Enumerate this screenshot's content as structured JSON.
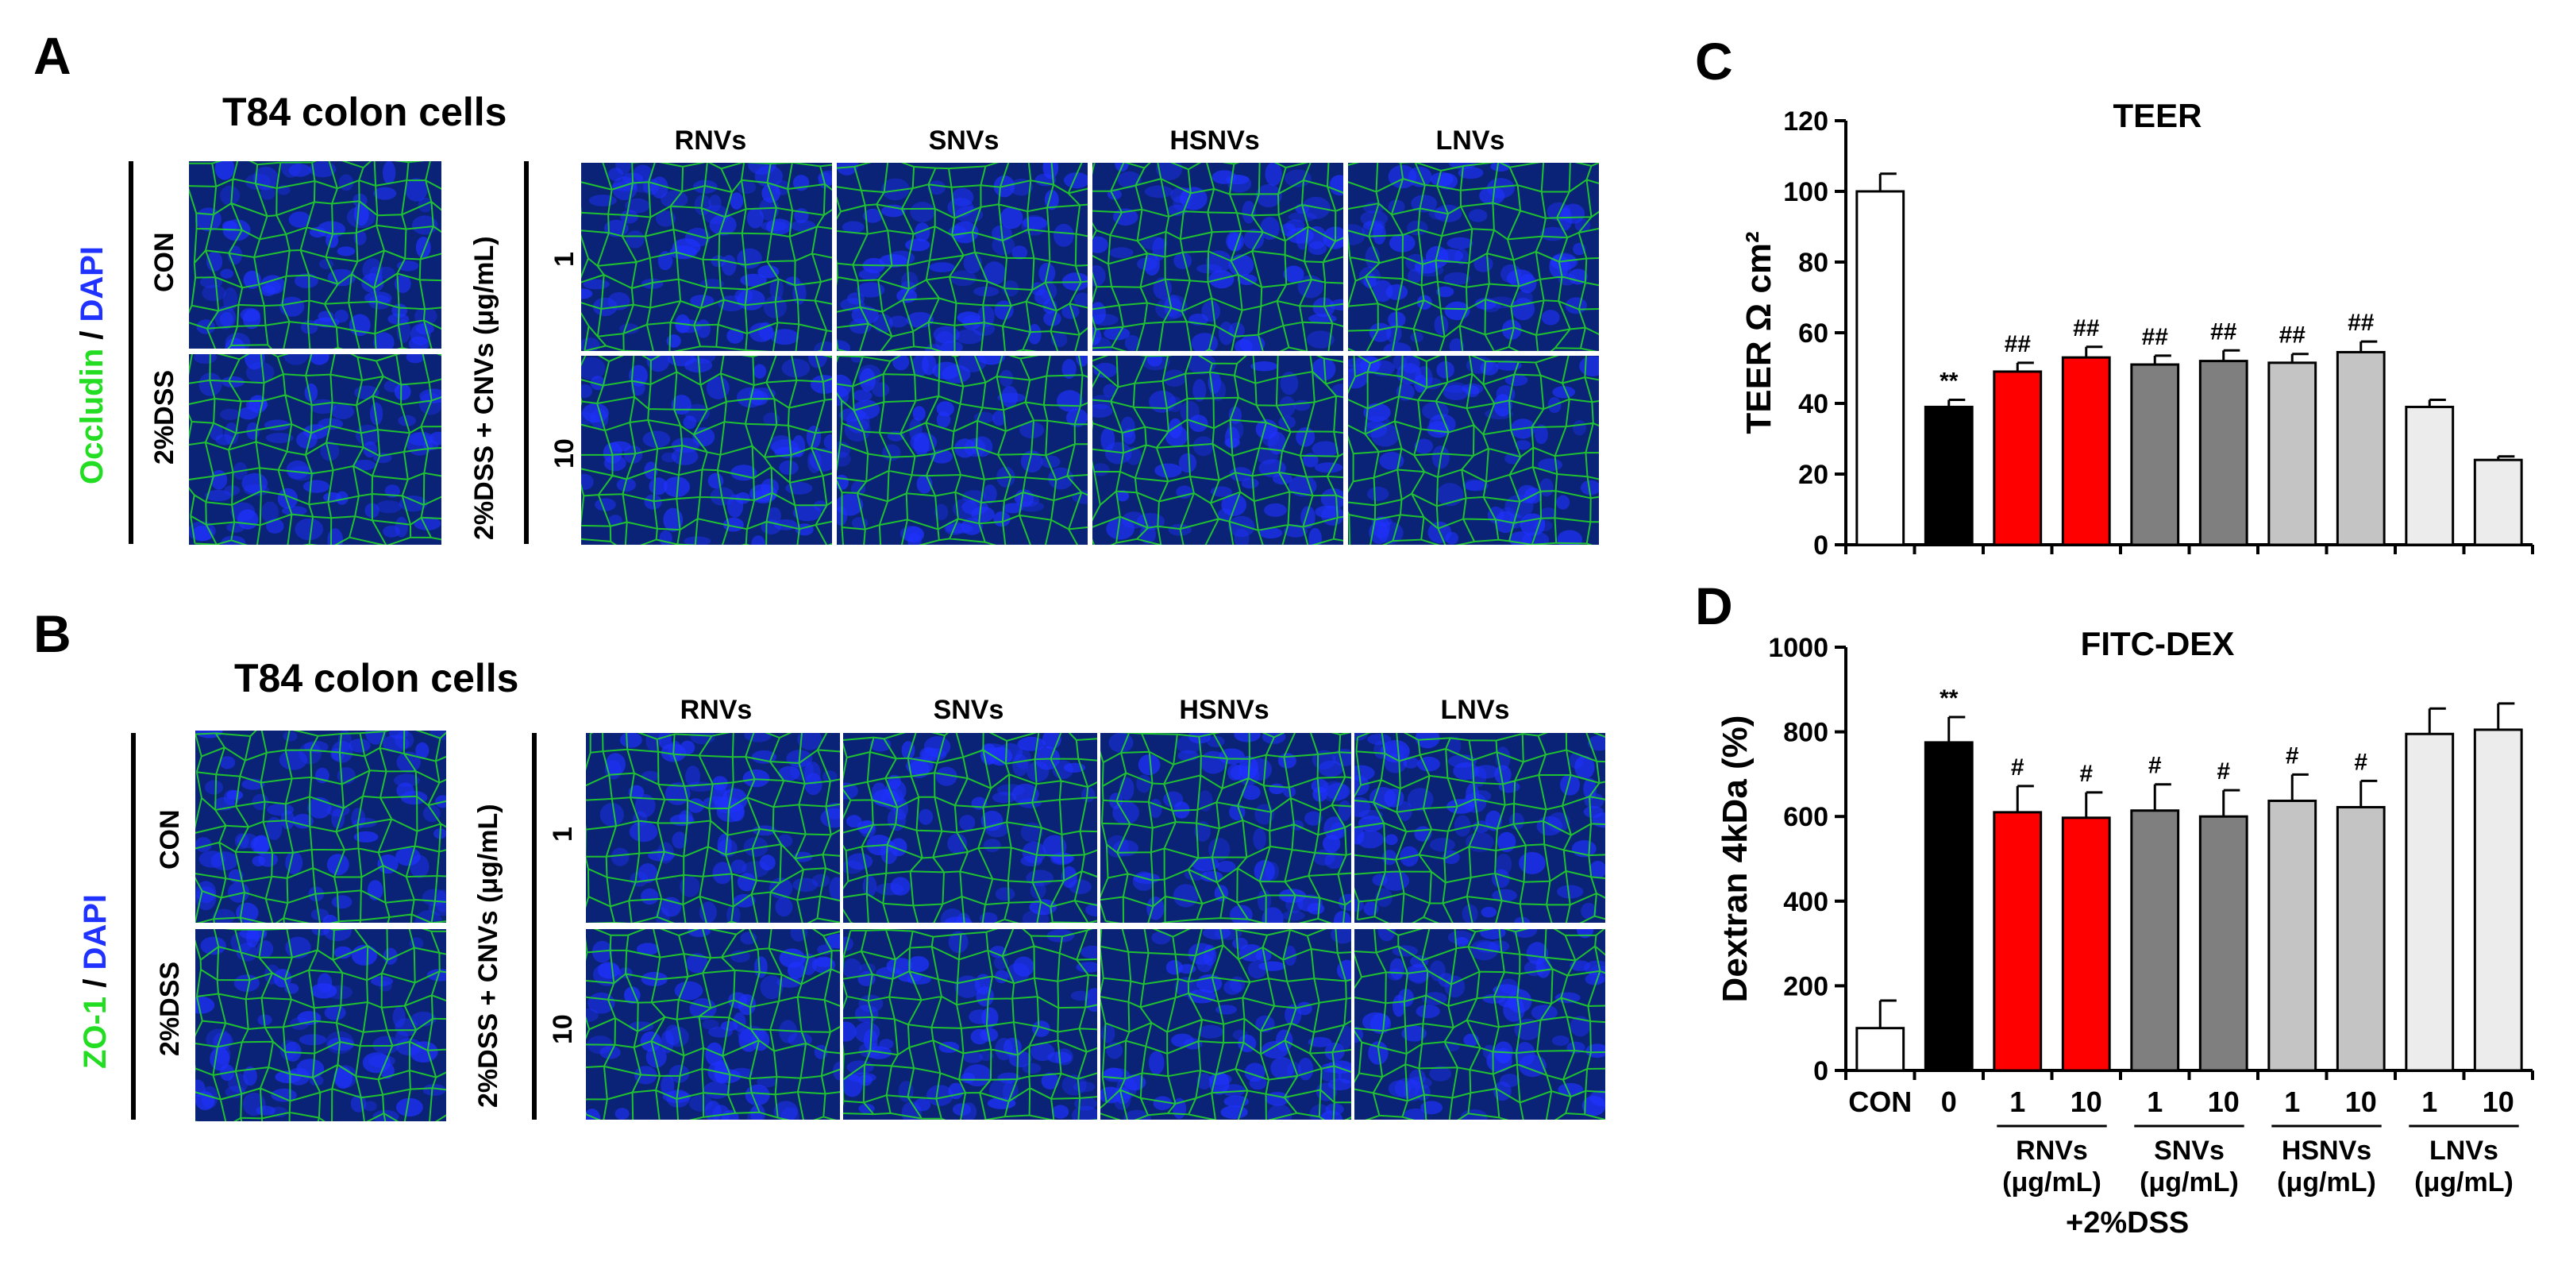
{
  "colors": {
    "stain_green": "#22dd22",
    "stain_blue": "#1f32ff",
    "cell_bg": "#0b2377",
    "con_bar": "#ffffff",
    "dss_bar": "#000000",
    "rnvs_bar": "#ff0000",
    "snvs_bar": "#7f7f7f",
    "hsnvs_bar": "#c4c4c4",
    "lnvs_bar": "#ececec"
  },
  "panelA": {
    "letter": "A",
    "title": "T84 colon cells",
    "stain_green": "Occludin",
    "stain_sep": " / ",
    "stain_blue": "DAPI",
    "row_con": "CON",
    "row_dss": "2%DSS",
    "treat_label": "2%DSS + CNVs (μg/mL)",
    "dose_1": "1",
    "dose_10": "10",
    "columns": [
      "RNVs",
      "SNVs",
      "HSNVs",
      "LNVs"
    ]
  },
  "panelB": {
    "letter": "B",
    "title": "T84 colon cells",
    "stain_green": "ZO-1",
    "stain_sep": " / ",
    "stain_blue": "DAPI",
    "row_con": "CON",
    "row_dss": "2%DSS",
    "treat_label": "2%DSS + CNVs (μg/mL)",
    "dose_1": "1",
    "dose_10": "10",
    "columns": [
      "RNVs",
      "SNVs",
      "HSNVs",
      "LNVs"
    ]
  },
  "chart_data": [
    {
      "letter": "C",
      "type": "bar",
      "title": "TEER",
      "ylabel": "TEER Ω cm²",
      "ylim": [
        0,
        120
      ],
      "yticks": [
        "0",
        "20",
        "40",
        "60",
        "80",
        "100",
        "120"
      ],
      "categories": [
        "CON",
        "0",
        "RNVs 1",
        "RNVs 10",
        "SNVs 1",
        "SNVs 10",
        "HSNVs 1",
        "HSNVs 10",
        "LNVs 1",
        "LNVs 10"
      ],
      "values": [
        100,
        39,
        49,
        53,
        51,
        52,
        51.5,
        54.5,
        39,
        24
      ],
      "errors": [
        5,
        2,
        2.5,
        3,
        2.5,
        3,
        2.5,
        3,
        2,
        1
      ],
      "annotations": [
        "",
        "**",
        "##",
        "##",
        "##",
        "##",
        "##",
        "##",
        "",
        ""
      ],
      "bar_colors": [
        "con",
        "dss",
        "rnvs",
        "rnvs",
        "snvs",
        "snvs",
        "hsnvs",
        "hsnvs",
        "lnvs",
        "lnvs"
      ]
    },
    {
      "letter": "D",
      "type": "bar",
      "title": "FITC-DEX",
      "ylabel": "Dextran 4kDa (%)",
      "ylim": [
        0,
        1000
      ],
      "yticks": [
        "0",
        "200",
        "400",
        "600",
        "800",
        "1000"
      ],
      "categories": [
        "CON",
        "0",
        "RNVs 1",
        "RNVs 10",
        "SNVs 1",
        "SNVs 10",
        "HSNVs 1",
        "HSNVs 10",
        "LNVs 1",
        "LNVs 10"
      ],
      "values": [
        100,
        775,
        610,
        597,
        614,
        600,
        637,
        622,
        795,
        805
      ],
      "errors": [
        65,
        60,
        62,
        60,
        62,
        62,
        62,
        62,
        60,
        62
      ],
      "annotations": [
        "",
        "**",
        "#",
        "#",
        "#",
        "#",
        "#",
        "#",
        "",
        ""
      ],
      "bar_colors": [
        "con",
        "dss",
        "rnvs",
        "rnvs",
        "snvs",
        "snvs",
        "hsnvs",
        "hsnvs",
        "lnvs",
        "lnvs"
      ],
      "tick_labels": [
        "CON",
        "0",
        "1",
        "10",
        "1",
        "10",
        "1",
        "10",
        "1",
        "10"
      ],
      "groups": [
        {
          "name": "RNVs",
          "unit": "(μg/mL)"
        },
        {
          "name": "SNVs",
          "unit": "(μg/mL)"
        },
        {
          "name": "HSNVs",
          "unit": "(μg/mL)"
        },
        {
          "name": "LNVs",
          "unit": "(μg/mL)"
        }
      ],
      "group_caption": "+2%DSS"
    }
  ]
}
